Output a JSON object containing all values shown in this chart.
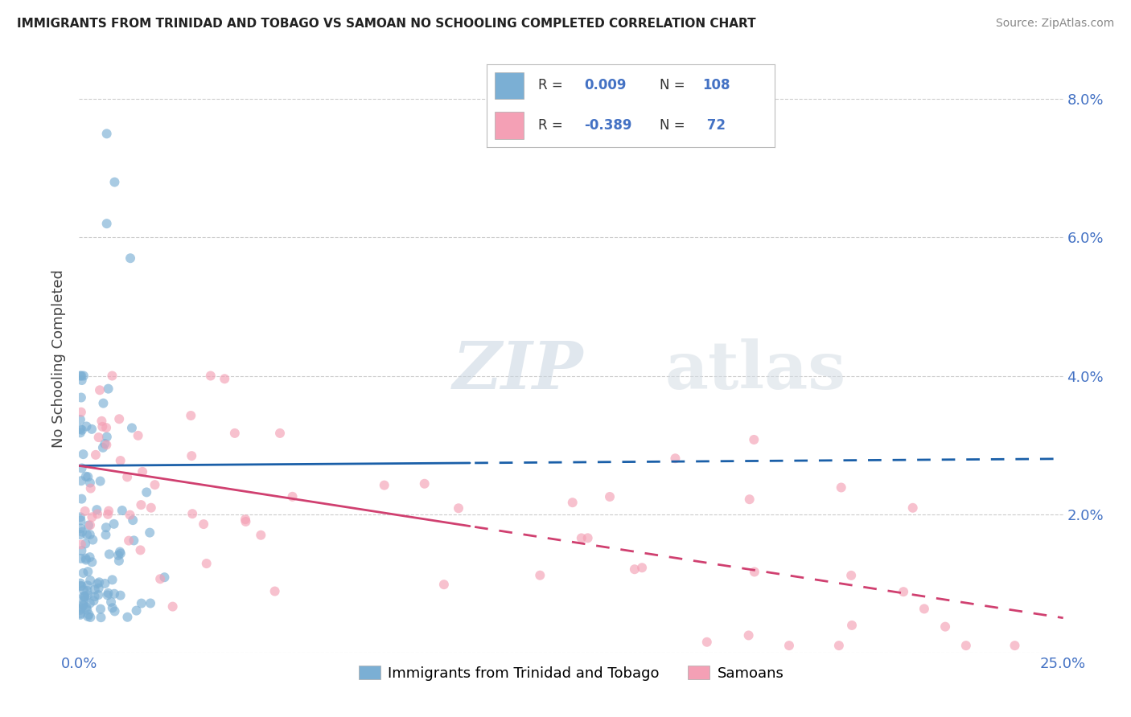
{
  "title": "IMMIGRANTS FROM TRINIDAD AND TOBAGO VS SAMOAN NO SCHOOLING COMPLETED CORRELATION CHART",
  "source": "Source: ZipAtlas.com",
  "ylabel": "No Schooling Completed",
  "x_min": 0.0,
  "x_max": 0.25,
  "y_min": 0.0,
  "y_max": 0.085,
  "blue_R": 0.009,
  "blue_N": 108,
  "pink_R": -0.389,
  "pink_N": 72,
  "blue_color": "#7bafd4",
  "pink_color": "#f4a0b5",
  "blue_line_color": "#1a5fa8",
  "pink_line_color": "#d04070",
  "watermark_zip": "ZIP",
  "watermark_atlas": "atlas",
  "legend_label_blue": "Immigrants from Trinidad and Tobago",
  "legend_label_pink": "Samoans",
  "blue_line_y0": 0.027,
  "blue_line_y1": 0.028,
  "pink_line_y0": 0.027,
  "pink_line_y1": 0.005,
  "line_solid_end": 0.1,
  "grid_color": "#cccccc",
  "tick_color": "#4472c4",
  "title_color": "#222222",
  "source_color": "#888888",
  "ylabel_color": "#444444"
}
